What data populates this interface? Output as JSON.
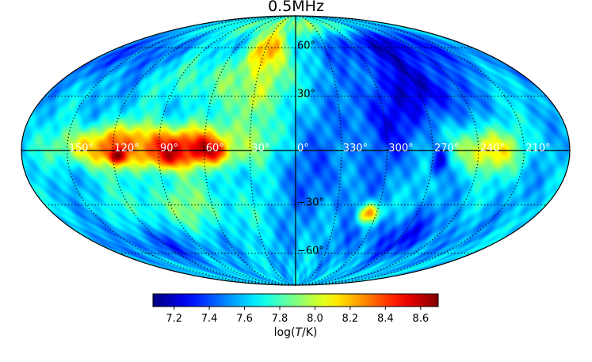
{
  "chart_data": {
    "type": "heatmap",
    "projection": "mollweide",
    "title": "0.5MHz",
    "colorbar": {
      "label_prefix": "log(",
      "label_var": "T",
      "label_suffix": "/K)",
      "range": [
        7.08,
        8.7
      ],
      "ticks": [
        "7.2",
        "7.4",
        "7.6",
        "7.8",
        "8.0",
        "8.2",
        "8.4",
        "8.6"
      ],
      "tick_values": [
        7.2,
        7.4,
        7.6,
        7.8,
        8.0,
        8.2,
        8.4,
        8.6
      ],
      "colormap": "jet"
    },
    "longitude_labels": [
      "150°",
      "120°",
      "90°",
      "60°",
      "30°",
      "0°",
      "330°",
      "300°",
      "270°",
      "240°",
      "210°"
    ],
    "longitude_values": [
      150,
      120,
      90,
      60,
      30,
      0,
      -30,
      -60,
      -90,
      -120,
      -150
    ],
    "latitude_labels": [
      "60°",
      "30°",
      "−30°",
      "−60°"
    ],
    "latitude_values": [
      60,
      30,
      -30,
      -60
    ],
    "background_level": 7.6,
    "features": [
      {
        "name": "galactic-plane-bright-region",
        "lon": 80,
        "lat": 2,
        "rlon": 45,
        "rlat": 12,
        "value": 8.45
      },
      {
        "name": "cygnus-hotspot",
        "lon": 85,
        "lat": -2,
        "rlon": 12,
        "rlat": 7,
        "value": 8.65
      },
      {
        "name": "plane-peak-60",
        "lon": 55,
        "lat": 0,
        "rlon": 14,
        "rlat": 6,
        "value": 8.6
      },
      {
        "name": "plane-region-120",
        "lon": 125,
        "lat": 2,
        "rlon": 28,
        "rlat": 10,
        "value": 8.3
      },
      {
        "name": "spot-120",
        "lon": 118,
        "lat": -3,
        "rlon": 5,
        "rlat": 4,
        "value": 8.7
      },
      {
        "name": "north-spur-arc",
        "lon": 25,
        "lat": 55,
        "rlon": 18,
        "rlat": 25,
        "value": 8.4
      },
      {
        "name": "north-spur-mid",
        "lon": 30,
        "lat": 35,
        "rlon": 10,
        "rlat": 20,
        "value": 8.2
      },
      {
        "name": "plane-region-30",
        "lon": 30,
        "lat": 5,
        "rlon": 15,
        "rlat": 12,
        "value": 8.0
      },
      {
        "name": "central-cool-region",
        "lon": -20,
        "lat": -15,
        "rlon": 35,
        "rlat": 30,
        "value": 7.45
      },
      {
        "name": "cool-region-300",
        "lon": -60,
        "lat": 20,
        "rlon": 25,
        "rlat": 25,
        "value": 7.3
      },
      {
        "name": "northern-cool-region",
        "lon": -95,
        "lat": 65,
        "rlon": 60,
        "rlat": 20,
        "value": 7.2
      },
      {
        "name": "cool-region-270",
        "lon": -95,
        "lat": 35,
        "rlon": 25,
        "rlat": 20,
        "value": 7.2
      },
      {
        "name": "absorption-hole-270",
        "lon": -95,
        "lat": -5,
        "rlon": 6,
        "rlat": 9,
        "value": 7.1
      },
      {
        "name": "bright-region-240",
        "lon": -125,
        "lat": 0,
        "rlon": 22,
        "rlat": 12,
        "value": 8.15
      },
      {
        "name": "southern-cool-region",
        "lon": -90,
        "lat": -50,
        "rlon": 40,
        "rlat": 15,
        "value": 7.35
      },
      {
        "name": "southern-cool-region-left",
        "lon": 120,
        "lat": -55,
        "rlon": 40,
        "rlat": 12,
        "value": 7.4
      },
      {
        "name": "northern-cool-region-left",
        "lon": 150,
        "lat": 55,
        "rlon": 35,
        "rlat": 15,
        "value": 7.4
      },
      {
        "name": "warm-region-300",
        "lon": -55,
        "lat": -35,
        "rlon": 8,
        "rlat": 6,
        "value": 8.3
      },
      {
        "name": "warm-band-north",
        "lon": 60,
        "lat": 40,
        "rlon": 40,
        "rlat": 15,
        "value": 7.85
      },
      {
        "name": "warm-band-south",
        "lon": 80,
        "lat": -30,
        "rlon": 45,
        "rlat": 15,
        "value": 7.85
      },
      {
        "name": "warm-region-cap-north",
        "lon": 0,
        "lat": 78,
        "rlon": 120,
        "rlat": 10,
        "value": 7.9
      }
    ]
  }
}
